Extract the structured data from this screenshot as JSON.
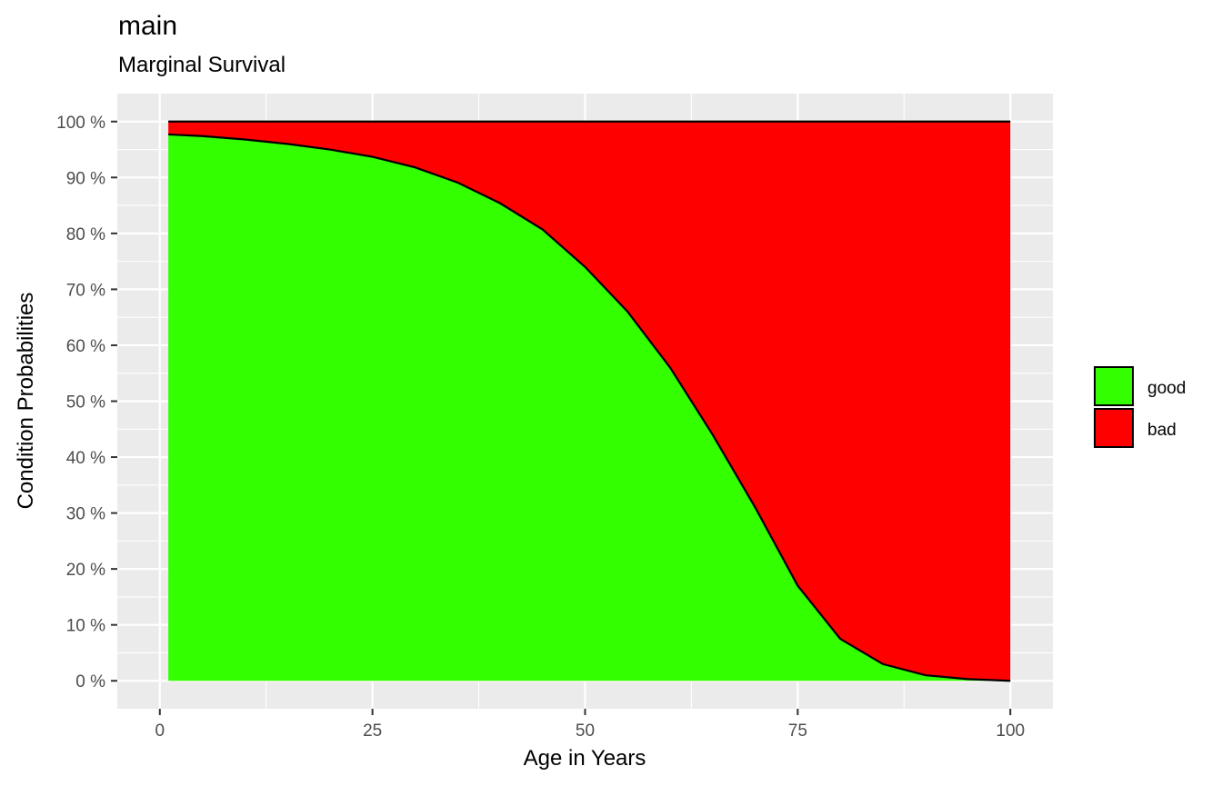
{
  "chart_data": {
    "type": "area",
    "title": "main",
    "subtitle": "Marginal Survival",
    "xlabel": "Age in Years",
    "ylabel": "Condition Probabilities",
    "xlim": [
      -5,
      105
    ],
    "ylim": [
      -0.05,
      1.05
    ],
    "x_ticks": [
      0,
      25,
      50,
      75,
      100
    ],
    "x_tick_labels": [
      "0",
      "25",
      "50",
      "75",
      "100"
    ],
    "y_ticks": [
      0,
      0.1,
      0.2,
      0.3,
      0.4,
      0.5,
      0.6,
      0.7,
      0.8,
      0.9,
      1.0
    ],
    "y_tick_labels": [
      "0 %",
      "10 %",
      "20 %",
      "30 %",
      "40 %",
      "50 %",
      "60 %",
      "70 %",
      "80 %",
      "90 %",
      "100 %"
    ],
    "grid": true,
    "legend_position": "right",
    "x": [
      1,
      5,
      10,
      15,
      20,
      25,
      30,
      35,
      40,
      45,
      50,
      55,
      60,
      65,
      70,
      75,
      80,
      85,
      90,
      95,
      100
    ],
    "series": [
      {
        "name": "good",
        "color": "#33ff00",
        "values": [
          0.977,
          0.974,
          0.968,
          0.96,
          0.95,
          0.937,
          0.918,
          0.891,
          0.854,
          0.807,
          0.74,
          0.66,
          0.56,
          0.44,
          0.31,
          0.17,
          0.075,
          0.03,
          0.01,
          0.003,
          0.0
        ]
      },
      {
        "name": "bad",
        "color": "#ff0000",
        "values": [
          0.023,
          0.026,
          0.032,
          0.04,
          0.05,
          0.063,
          0.082,
          0.109,
          0.146,
          0.193,
          0.26,
          0.34,
          0.44,
          0.56,
          0.69,
          0.83,
          0.925,
          0.97,
          0.99,
          0.997,
          1.0
        ]
      }
    ]
  }
}
